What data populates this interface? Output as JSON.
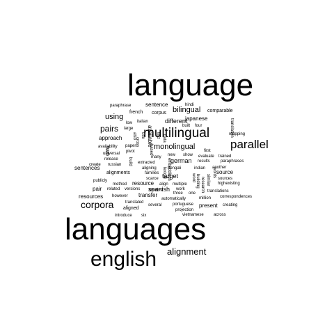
{
  "words": [
    {
      "text": "language",
      "color": "#000000"
    },
    {
      "text": "languages",
      "color": "#000000"
    },
    {
      "text": "english",
      "color": "#000000"
    },
    {
      "text": "multilingual",
      "color": "#000000"
    },
    {
      "text": "parallel",
      "color": "#000000"
    },
    {
      "text": "corpora",
      "color": "#000000"
    },
    {
      "text": "alignment",
      "color": "#000000"
    },
    {
      "text": "bilingual",
      "color": "#000000"
    },
    {
      "text": "monolingual",
      "color": "#000000"
    },
    {
      "text": "pairs",
      "color": "#000000"
    },
    {
      "text": "using",
      "color": "#000000"
    },
    {
      "text": "different",
      "color": "#000000"
    },
    {
      "text": "japanese",
      "color": "#000000"
    },
    {
      "text": "german",
      "color": "#000000"
    },
    {
      "text": "target",
      "color": "#000000"
    },
    {
      "text": "source",
      "color": "#000000"
    },
    {
      "text": "spanish",
      "color": "#000000"
    },
    {
      "text": "transfer",
      "color": "#000000"
    },
    {
      "text": "sentences",
      "color": "#000000"
    },
    {
      "text": "resources",
      "color": "#000000"
    },
    {
      "text": "resource",
      "color": "#000000"
    },
    {
      "text": "approach",
      "color": "#000000"
    },
    {
      "text": "sentence",
      "color": "#000000"
    },
    {
      "text": "corpus",
      "color": "#000000"
    },
    {
      "text": "french",
      "color": "#000000"
    },
    {
      "text": "comparable",
      "color": "#000000"
    },
    {
      "text": "present",
      "color": "#000000"
    },
    {
      "text": "pair",
      "color": "#000000"
    },
    {
      "text": "alignments",
      "color": "#000000"
    },
    {
      "text": "aligned",
      "color": "#000000"
    },
    {
      "text": "available",
      "color": "#000000"
    },
    {
      "text": "two",
      "color": "#000000"
    },
    {
      "text": "translation",
      "color": "#000000"
    },
    {
      "text": "paraphrase",
      "color": "#000000"
    },
    {
      "text": "hindi",
      "color": "#000000"
    },
    {
      "text": "low",
      "color": "#000000"
    },
    {
      "text": "italian",
      "color": "#000000"
    },
    {
      "text": "built",
      "color": "#000000"
    },
    {
      "text": "four",
      "color": "#000000"
    },
    {
      "text": "large",
      "color": "#000000"
    },
    {
      "text": "also",
      "color": "#000000"
    },
    {
      "text": "use",
      "color": "#000000"
    },
    {
      "text": "mapping",
      "color": "#000000"
    },
    {
      "text": "availability",
      "color": "#000000"
    },
    {
      "text": "paper",
      "color": "#000000"
    },
    {
      "text": "pivot",
      "color": "#000000"
    },
    {
      "text": "first",
      "color": "#000000"
    },
    {
      "text": "universal",
      "color": "#000000"
    },
    {
      "text": "many",
      "color": "#000000"
    },
    {
      "text": "new",
      "color": "#000000"
    },
    {
      "text": "show",
      "color": "#000000"
    },
    {
      "text": "evaluate",
      "color": "#000000"
    },
    {
      "text": "trained",
      "color": "#000000"
    },
    {
      "text": "release",
      "color": "#000000"
    },
    {
      "text": "extracted",
      "color": "#000000"
    },
    {
      "text": "results",
      "color": "#000000"
    },
    {
      "text": "paraphrases",
      "color": "#000000"
    },
    {
      "text": "create",
      "color": "#000000"
    },
    {
      "text": "russian",
      "color": "#000000"
    },
    {
      "text": "aligning",
      "color": "#000000"
    },
    {
      "text": "bengali",
      "color": "#000000"
    },
    {
      "text": "indian",
      "color": "#000000"
    },
    {
      "text": "another",
      "color": "#000000"
    },
    {
      "text": "families",
      "color": "#000000"
    },
    {
      "text": "scarce",
      "color": "#000000"
    },
    {
      "text": "publicly",
      "color": "#000000"
    },
    {
      "text": "method",
      "color": "#000000"
    },
    {
      "text": "align",
      "color": "#000000"
    },
    {
      "text": "multiple",
      "color": "#000000"
    },
    {
      "text": "sources",
      "color": "#000000"
    },
    {
      "text": "highexisting",
      "color": "#000000"
    },
    {
      "text": "related",
      "color": "#000000"
    },
    {
      "text": "versions",
      "color": "#000000"
    },
    {
      "text": "created",
      "color": "#000000"
    },
    {
      "text": "work",
      "color": "#000000"
    },
    {
      "text": "three",
      "color": "#000000"
    },
    {
      "text": "one",
      "color": "#000000"
    },
    {
      "text": "translations",
      "color": "#000000"
    },
    {
      "text": "however",
      "color": "#000000"
    },
    {
      "text": "automatically",
      "color": "#000000"
    },
    {
      "text": "million",
      "color": "#000000"
    },
    {
      "text": "correspondences",
      "color": "#000000"
    },
    {
      "text": "translated",
      "color": "#000000"
    },
    {
      "text": "portuguese",
      "color": "#000000"
    },
    {
      "text": "creating",
      "color": "#000000"
    },
    {
      "text": "several",
      "color": "#000000"
    },
    {
      "text": "projection",
      "color": "#000000"
    },
    {
      "text": "introduce",
      "color": "#000000"
    },
    {
      "text": "six",
      "color": "#000000"
    },
    {
      "text": "vietnamese",
      "color": "#000000"
    },
    {
      "text": "across",
      "color": "#000000"
    },
    {
      "text": "based",
      "color": "#000000"
    },
    {
      "text": "build",
      "color": "#000000"
    },
    {
      "text": "embeddings",
      "color": "#000000"
    },
    {
      "text": "similar",
      "color": "#000000"
    },
    {
      "text": "words",
      "color": "#000000"
    },
    {
      "text": "research",
      "color": "#000000"
    },
    {
      "text": "building",
      "color": "#000000"
    },
    {
      "text": "word",
      "color": "#000000"
    },
    {
      "text": "lexical",
      "color": "#000000"
    },
    {
      "text": "cross",
      "color": "#000000"
    },
    {
      "text": "text",
      "color": "#000000"
    },
    {
      "text": "data",
      "color": "#000000"
    }
  ]
}
